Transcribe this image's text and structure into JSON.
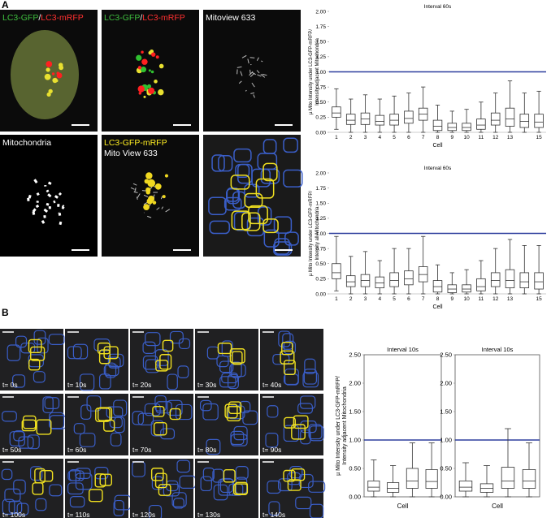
{
  "panel_a": {
    "letter": "A",
    "images": [
      {
        "label": [
          {
            "text": "LC3-GFP",
            "color": "#3fbf3f"
          },
          {
            "text": "/",
            "color": "#ffffff"
          },
          {
            "text": "LC3-mRFP",
            "color": "#ff3030"
          }
        ]
      },
      {
        "label": [
          {
            "text": "LC3-GFP",
            "color": "#3fbf3f"
          },
          {
            "text": "/",
            "color": "#ffffff"
          },
          {
            "text": "LC3-mRFP",
            "color": "#ff3030"
          }
        ]
      },
      {
        "label": [
          {
            "text": "Mitoview 633",
            "color": "#ffffff"
          }
        ]
      },
      {
        "label": [
          {
            "text": "Mitochondria",
            "color": "#ffffff"
          }
        ]
      },
      {
        "label": [
          {
            "text": "LC3-GFP-mRFP",
            "color": "#ffee22"
          },
          {
            "text": "Mito View 633",
            "color": "#ffffff"
          }
        ]
      },
      {
        "label": []
      }
    ]
  },
  "panel_b": {
    "letter": "B",
    "times": [
      "t= 0s",
      "t= 10s",
      "t= 20s",
      "t= 30s",
      "t= 40s",
      "t= 50s",
      "t= 60s",
      "t= 70s",
      "t= 80s",
      "t= 90s",
      "t= 100s",
      "t= 110s",
      "t= 120s",
      "t= 130s",
      "t= 140s"
    ]
  },
  "chart_data": [
    {
      "type": "box",
      "title": "Interval 60s",
      "ylabel": [
        "µ Mito Intensity under LC3-GFP-mRFP/",
        "Intensity adjacent Mitochondria"
      ],
      "xlabel": "Cell",
      "categories": [
        "1",
        "2",
        "3",
        "4",
        "5",
        "6",
        "7",
        "8",
        "9",
        "10",
        "11",
        "12",
        "13",
        null,
        "15"
      ],
      "boxes": [
        {
          "whislo": 0.05,
          "q1": 0.25,
          "med": 0.32,
          "q3": 0.42,
          "whishi": 0.72
        },
        {
          "whislo": 0,
          "q1": 0.13,
          "med": 0.2,
          "q3": 0.3,
          "whishi": 0.55
        },
        {
          "whislo": 0,
          "q1": 0.13,
          "med": 0.22,
          "q3": 0.32,
          "whishi": 0.62
        },
        {
          "whislo": 0,
          "q1": 0.12,
          "med": 0.18,
          "q3": 0.28,
          "whishi": 0.55
        },
        {
          "whislo": 0,
          "q1": 0.12,
          "med": 0.2,
          "q3": 0.3,
          "whishi": 0.6
        },
        {
          "whislo": 0,
          "q1": 0.15,
          "med": 0.23,
          "q3": 0.35,
          "whishi": 0.65
        },
        {
          "whislo": 0,
          "q1": 0.2,
          "med": 0.3,
          "q3": 0.4,
          "whishi": 0.75
        },
        {
          "whislo": 0,
          "q1": 0.03,
          "med": 0.1,
          "q3": 0.2,
          "whishi": 0.45
        },
        {
          "whislo": 0,
          "q1": 0.03,
          "med": 0.08,
          "q3": 0.15,
          "whishi": 0.35
        },
        {
          "whislo": 0,
          "q1": 0.03,
          "med": 0.08,
          "q3": 0.15,
          "whishi": 0.38
        },
        {
          "whislo": 0,
          "q1": 0.05,
          "med": 0.12,
          "q3": 0.22,
          "whishi": 0.5
        },
        {
          "whislo": 0,
          "q1": 0.12,
          "med": 0.2,
          "q3": 0.32,
          "whishi": 0.65
        },
        {
          "whislo": 0,
          "q1": 0.1,
          "med": 0.22,
          "q3": 0.4,
          "whishi": 0.85
        },
        {
          "whislo": 0,
          "q1": 0.08,
          "med": 0.18,
          "q3": 0.3,
          "whishi": 0.65
        },
        {
          "whislo": 0,
          "q1": 0.08,
          "med": 0.17,
          "q3": 0.3,
          "whishi": 0.68
        }
      ],
      "color": "#333333",
      "hline": 1,
      "hline_color": "#2e3f9e",
      "frame": false,
      "ylim": [
        0,
        2
      ],
      "yticks": [
        {
          "value": 0,
          "label": "0.00"
        },
        {
          "value": 0.25,
          "label": "0.25"
        },
        {
          "value": 0.5,
          "label": "0.50"
        },
        {
          "value": 0.75,
          "label": "0.75"
        },
        {
          "value": 1,
          "label": "1.00"
        },
        {
          "value": 1.25,
          "label": "1.25"
        },
        {
          "value": 1.5,
          "label": "1.50"
        },
        {
          "value": 1.75,
          "label": "1.75"
        },
        {
          "value": 2,
          "label": "2.00"
        }
      ]
    },
    {
      "type": "box",
      "title": "Interval 60s",
      "ylabel": [
        "µ Mito Intensity under LC3-GFP-mRFP/",
        "Intensity all Mitochondria"
      ],
      "xlabel": "Cell",
      "categories": [
        "1",
        "2",
        "3",
        "4",
        "5",
        "6",
        "7",
        "8",
        "9",
        "10",
        "11",
        "12",
        "13",
        null,
        "15"
      ],
      "boxes": [
        {
          "whislo": 0.05,
          "q1": 0.25,
          "med": 0.35,
          "q3": 0.5,
          "whishi": 0.95
        },
        {
          "whislo": 0,
          "q1": 0.12,
          "med": 0.2,
          "q3": 0.3,
          "whishi": 0.62
        },
        {
          "whislo": 0,
          "q1": 0.12,
          "med": 0.22,
          "q3": 0.32,
          "whishi": 0.7
        },
        {
          "whislo": 0,
          "q1": 0.1,
          "med": 0.18,
          "q3": 0.28,
          "whishi": 0.55
        },
        {
          "whislo": 0,
          "q1": 0.12,
          "med": 0.22,
          "q3": 0.35,
          "whishi": 0.75
        },
        {
          "whislo": 0,
          "q1": 0.15,
          "med": 0.25,
          "q3": 0.38,
          "whishi": 0.75
        },
        {
          "whislo": 0,
          "q1": 0.2,
          "med": 0.32,
          "q3": 0.45,
          "whishi": 0.95
        },
        {
          "whislo": 0,
          "q1": 0.03,
          "med": 0.12,
          "q3": 0.22,
          "whishi": 0.48
        },
        {
          "whislo": 0,
          "q1": 0.02,
          "med": 0.08,
          "q3": 0.15,
          "whishi": 0.35
        },
        {
          "whislo": 0,
          "q1": 0.03,
          "med": 0.08,
          "q3": 0.15,
          "whishi": 0.4
        },
        {
          "whislo": 0,
          "q1": 0.05,
          "med": 0.12,
          "q3": 0.25,
          "whishi": 0.55
        },
        {
          "whislo": 0,
          "q1": 0.12,
          "med": 0.22,
          "q3": 0.35,
          "whishi": 0.75
        },
        {
          "whislo": 0,
          "q1": 0.1,
          "med": 0.22,
          "q3": 0.4,
          "whishi": 0.9
        },
        {
          "whislo": 0,
          "q1": 0.1,
          "med": 0.2,
          "q3": 0.35,
          "whishi": 0.8
        },
        {
          "whislo": 0,
          "q1": 0.08,
          "med": 0.2,
          "q3": 0.35,
          "whishi": 0.8
        }
      ],
      "color": "#333333",
      "hline": 1,
      "hline_color": "#2e3f9e",
      "frame": false,
      "ylim": [
        0,
        2
      ],
      "yticks": [
        {
          "value": 0,
          "label": "0.00"
        },
        {
          "value": 0.25,
          "label": "0.25"
        },
        {
          "value": 0.5,
          "label": "0.50"
        },
        {
          "value": 0.75,
          "label": "0.75"
        },
        {
          "value": 1,
          "label": "1.00"
        },
        {
          "value": 1.25,
          "label": "1.25"
        },
        {
          "value": 1.5,
          "label": "1.50"
        },
        {
          "value": 1.75,
          "label": "1.75"
        },
        {
          "value": 2,
          "label": "2.00"
        }
      ]
    },
    {
      "type": "box",
      "title": "Interval 10s",
      "ylabel": [
        "µ Mito Intensity under LC3-GFP-mRFP/",
        "Intensity adjacent Mitochondria"
      ],
      "xlabel": "Cell",
      "categories": [
        null,
        null,
        null,
        null
      ],
      "boxes": [
        {
          "whislo": 0,
          "q1": 0.1,
          "med": 0.17,
          "q3": 0.28,
          "whishi": 0.65
        },
        {
          "whislo": 0,
          "q1": 0.08,
          "med": 0.15,
          "q3": 0.25,
          "whishi": 0.55
        },
        {
          "whislo": 0,
          "q1": 0.15,
          "med": 0.28,
          "q3": 0.5,
          "whishi": 0.95
        },
        {
          "whislo": 0,
          "q1": 0.15,
          "med": 0.27,
          "q3": 0.48,
          "whishi": 0.95
        }
      ],
      "color": "#333333",
      "hline": 1,
      "hline_color": "#2e3f9e",
      "frame": true,
      "ylim": [
        0,
        2.5
      ],
      "yticks": [
        {
          "value": 0,
          "label": "0.00"
        },
        {
          "value": 0.5,
          "label": "0.50"
        },
        {
          "value": 1,
          "label": "1.00"
        },
        {
          "value": 1.5,
          "label": "1.50"
        },
        {
          "value": 2,
          "label": "2.00"
        },
        {
          "value": 2.5,
          "label": "2.50"
        }
      ]
    },
    {
      "type": "box",
      "title": "Interval 10s",
      "xlabel": "Cell",
      "categories": [
        null,
        null,
        null,
        null
      ],
      "boxes": [
        {
          "whislo": 0,
          "q1": 0.1,
          "med": 0.17,
          "q3": 0.28,
          "whishi": 0.6
        },
        {
          "whislo": 0,
          "q1": 0.08,
          "med": 0.15,
          "q3": 0.23,
          "whishi": 0.55
        },
        {
          "whislo": 0,
          "q1": 0.15,
          "med": 0.28,
          "q3": 0.52,
          "whishi": 1.2
        },
        {
          "whislo": 0,
          "q1": 0.15,
          "med": 0.28,
          "q3": 0.48,
          "whishi": 0.95
        }
      ],
      "color": "#333333",
      "hline": 1,
      "hline_color": "#2e3f9e",
      "frame": true,
      "ylim": [
        0,
        2.5
      ],
      "yticks": [
        {
          "value": 0,
          "label": "0.00"
        },
        {
          "value": 0.5,
          "label": "0.50"
        },
        {
          "value": 1,
          "label": "1.00"
        },
        {
          "value": 1.5,
          "label": "1.50"
        },
        {
          "value": 2,
          "label": "2.00"
        },
        {
          "value": 2.5,
          "label": "2.50"
        }
      ]
    }
  ]
}
